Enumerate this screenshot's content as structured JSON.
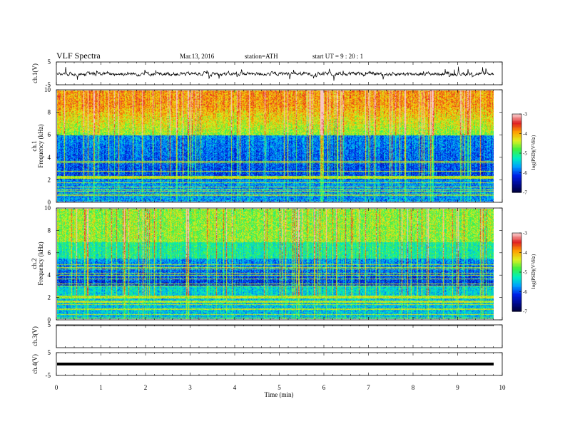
{
  "header": {
    "title": "VLF  Spectra",
    "date": "Mar.13, 2016",
    "station": "station=ATH",
    "start": "start  UT  =   9  : 20 : 1"
  },
  "labels": {
    "ch1v": "ch.1(V)",
    "ch1a": "ch.1",
    "ch2a": "ch.2",
    "freq": "Frequency  (kHz)",
    "ch3v": "ch.3(V)",
    "ch4v": "ch.4(V)",
    "xlabel": "Time  (min)",
    "colorbar": "log(PSD)(V²/Hz)"
  },
  "colors": {
    "colormap": [
      "#000033",
      "#000a8f",
      "#0020e8",
      "#00a0ff",
      "#00f0c0",
      "#40f040",
      "#e0f020",
      "#ffa000",
      "#e02020",
      "#f8c8c8"
    ]
  },
  "chart_data": [
    {
      "type": "line",
      "name": "ch1-waveform",
      "ylabel": "ch.1(V)",
      "ylim": [
        -5,
        5
      ],
      "yticks": [
        5,
        -5
      ],
      "xlim": [
        0,
        10
      ],
      "baseline": 0,
      "data_end": 9.8
    },
    {
      "type": "heatmap",
      "name": "ch1-spectrogram",
      "ylabel": "Frequency (kHz)",
      "ylim": [
        0,
        10
      ],
      "yticks": [
        0,
        2,
        4,
        6,
        8,
        10
      ],
      "xlim": [
        0,
        10
      ],
      "colorbar": {
        "ticks": [
          -3,
          -4,
          -5,
          -6,
          -7
        ],
        "label": "log(PSD)(V²/Hz)"
      }
    },
    {
      "type": "heatmap",
      "name": "ch2-spectrogram",
      "ylabel": "Frequency (kHz)",
      "ylim": [
        0,
        10
      ],
      "yticks": [
        0,
        2,
        4,
        6,
        8,
        10
      ],
      "xlim": [
        0,
        10
      ],
      "colorbar": {
        "ticks": [
          -3,
          -4,
          -5,
          -6,
          -7
        ],
        "label": "log(PSD)(V²/Hz)"
      }
    },
    {
      "type": "line",
      "name": "ch3-waveform",
      "ylabel": "ch.3(V)",
      "ylim": [
        -5,
        5
      ],
      "yticks": [
        5
      ],
      "xlim": [
        0,
        10
      ],
      "baseline": 5
    },
    {
      "type": "line",
      "name": "ch4-waveform",
      "ylabel": "ch.4(V)",
      "ylim": [
        -5,
        5
      ],
      "yticks": [
        5,
        -5
      ],
      "xlim": [
        0,
        10
      ],
      "baseline": 0
    }
  ],
  "xaxis": {
    "ticks": [
      0,
      1,
      2,
      3,
      4,
      5,
      6,
      7,
      8,
      9,
      10
    ],
    "label": "Time  (min)",
    "range": [
      0,
      10
    ]
  }
}
